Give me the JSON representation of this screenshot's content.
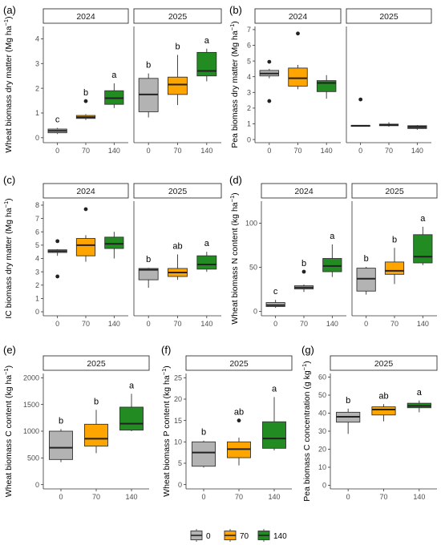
{
  "colors": {
    "0": "#b3b3b3",
    "70": "#ffa500",
    "140": "#228b22"
  },
  "legend": {
    "position": "bottom",
    "items": [
      "0",
      "70",
      "140"
    ]
  },
  "chart_data": [
    {
      "type": "boxplot",
      "tag": "(a)",
      "ylabel": "Wheat biomass dry matter (Mg ha",
      "ysup": "−1",
      "ylabel_end": ")",
      "ylim": [
        -0.2,
        4.5
      ],
      "yticks": [
        0,
        1,
        2,
        3,
        4
      ],
      "categories": [
        "0",
        "70",
        "140"
      ],
      "panels": [
        {
          "strip": "2024",
          "boxes": [
            {
              "group": "0",
              "min": 0.15,
              "q1": 0.2,
              "median": 0.28,
              "q3": 0.35,
              "max": 0.4,
              "outliers": [],
              "letter": "c"
            },
            {
              "group": "70",
              "min": 0.72,
              "q1": 0.78,
              "median": 0.83,
              "q3": 0.9,
              "max": 0.95,
              "outliers": [
                1.48
              ],
              "letter": "b"
            },
            {
              "group": "140",
              "min": 1.2,
              "q1": 1.35,
              "median": 1.6,
              "q3": 1.9,
              "max": 2.2,
              "outliers": [],
              "letter": "a"
            }
          ]
        },
        {
          "strip": "2025",
          "boxes": [
            {
              "group": "0",
              "min": 0.82,
              "q1": 1.05,
              "median": 1.75,
              "q3": 2.4,
              "max": 2.6,
              "outliers": [],
              "letter": "b"
            },
            {
              "group": "70",
              "min": 1.32,
              "q1": 1.75,
              "median": 2.15,
              "q3": 2.45,
              "max": 3.35,
              "outliers": [],
              "letter": "b"
            },
            {
              "group": "140",
              "min": 2.28,
              "q1": 2.5,
              "median": 2.7,
              "q3": 3.45,
              "max": 3.6,
              "outliers": [],
              "letter": "a"
            }
          ]
        }
      ]
    },
    {
      "type": "boxplot",
      "tag": "(b)",
      "ylabel": "Pea biomass dry matter (Mg ha",
      "ysup": "−1",
      "ylabel_end": ")",
      "ylim": [
        -0.2,
        7.2
      ],
      "yticks": [
        0,
        1,
        2,
        3,
        4,
        5,
        6,
        7
      ],
      "categories": [
        "0",
        "70",
        "140"
      ],
      "panels": [
        {
          "strip": "2024",
          "boxes": [
            {
              "group": "0",
              "min": 3.9,
              "q1": 4.05,
              "median": 4.2,
              "q3": 4.4,
              "max": 4.5,
              "outliers": [
                4.95,
                2.45
              ],
              "letter": ""
            },
            {
              "group": "70",
              "min": 3.2,
              "q1": 3.4,
              "median": 3.9,
              "q3": 4.55,
              "max": 4.75,
              "outliers": [
                6.75
              ],
              "letter": ""
            },
            {
              "group": "140",
              "min": 2.6,
              "q1": 3.05,
              "median": 3.6,
              "q3": 3.75,
              "max": 4.1,
              "outliers": [],
              "letter": ""
            }
          ]
        },
        {
          "strip": "2025",
          "boxes": [
            {
              "group": "0",
              "min": 0.85,
              "q1": 0.85,
              "median": 0.88,
              "q3": 0.9,
              "max": 0.92,
              "outliers": [
                2.55
              ],
              "letter": ""
            },
            {
              "group": "70",
              "min": 0.82,
              "q1": 0.88,
              "median": 0.92,
              "q3": 0.98,
              "max": 1.1,
              "outliers": [],
              "letter": ""
            },
            {
              "group": "140",
              "min": 0.62,
              "q1": 0.7,
              "median": 0.8,
              "q3": 0.88,
              "max": 0.92,
              "outliers": [],
              "letter": ""
            }
          ]
        }
      ]
    },
    {
      "type": "boxplot",
      "tag": "(c)",
      "ylabel": "IC biomass dry matter (Mg ha",
      "ysup": "−1",
      "ylabel_end": ")",
      "ylim": [
        -0.3,
        8.3
      ],
      "yticks": [
        0,
        1,
        2,
        3,
        4,
        5,
        6,
        7,
        8
      ],
      "categories": [
        "0",
        "70",
        "140"
      ],
      "panels": [
        {
          "strip": "2024",
          "boxes": [
            {
              "group": "0",
              "min": 4.2,
              "q1": 4.45,
              "median": 4.55,
              "q3": 4.65,
              "max": 4.7,
              "outliers": [
                5.3,
                2.65
              ],
              "letter": ""
            },
            {
              "group": "70",
              "min": 3.75,
              "q1": 4.2,
              "median": 5.0,
              "q3": 5.5,
              "max": 5.75,
              "outliers": [
                7.7
              ],
              "letter": ""
            },
            {
              "group": "140",
              "min": 4.0,
              "q1": 4.75,
              "median": 5.1,
              "q3": 5.6,
              "max": 6.0,
              "outliers": [],
              "letter": ""
            }
          ]
        },
        {
          "strip": "2025",
          "boxes": [
            {
              "group": "0",
              "min": 1.8,
              "q1": 2.4,
              "median": 3.15,
              "q3": 3.25,
              "max": 3.3,
              "outliers": [],
              "letter": "b"
            },
            {
              "group": "70",
              "min": 2.4,
              "q1": 2.65,
              "median": 2.95,
              "q3": 3.25,
              "max": 4.3,
              "outliers": [],
              "letter": "ab"
            },
            {
              "group": "140",
              "min": 3.0,
              "q1": 3.2,
              "median": 3.55,
              "q3": 4.2,
              "max": 4.5,
              "outliers": [],
              "letter": "a"
            }
          ]
        }
      ]
    },
    {
      "type": "boxplot",
      "tag": "(d)",
      "ylabel": "Wheat biomass N content (kg ha",
      "ysup": "−1",
      "ylabel_end": ")",
      "ylim": [
        -5,
        125
      ],
      "yticks": [
        0,
        50,
        100
      ],
      "categories": [
        "0",
        "70",
        "140"
      ],
      "panels": [
        {
          "strip": "2024",
          "boxes": [
            {
              "group": "0",
              "min": 4,
              "q1": 5.5,
              "median": 7,
              "q3": 10,
              "max": 13,
              "outliers": [],
              "letter": "c"
            },
            {
              "group": "70",
              "min": 22,
              "q1": 25.5,
              "median": 27,
              "q3": 29,
              "max": 30.5,
              "outliers": [
                45
              ],
              "letter": "b"
            },
            {
              "group": "140",
              "min": 39,
              "q1": 45,
              "median": 51.5,
              "q3": 60,
              "max": 76,
              "outliers": [],
              "letter": "a"
            }
          ]
        },
        {
          "strip": "2025",
          "boxes": [
            {
              "group": "0",
              "min": 19,
              "q1": 23,
              "median": 37,
              "q3": 49,
              "max": 50.5,
              "outliers": [],
              "letter": "b"
            },
            {
              "group": "70",
              "min": 31,
              "q1": 42,
              "median": 46,
              "q3": 56,
              "max": 72,
              "outliers": [],
              "letter": "b"
            },
            {
              "group": "140",
              "min": 52.5,
              "q1": 55,
              "median": 62,
              "q3": 87,
              "max": 96,
              "outliers": [],
              "letter": "a"
            }
          ]
        }
      ]
    },
    {
      "type": "boxplot",
      "tag": "(e)",
      "ylabel": "Wheat biomass C content (kg ha",
      "ysup": "−1",
      "ylabel_end": ")",
      "ylim": [
        -80,
        2080
      ],
      "yticks": [
        0,
        500,
        1000,
        1500,
        2000
      ],
      "categories": [
        "0",
        "70",
        "140"
      ],
      "panels": [
        {
          "strip": "2025",
          "boxes": [
            {
              "group": "0",
              "min": 420,
              "q1": 470,
              "median": 690,
              "q3": 1000,
              "max": 1040,
              "outliers": [],
              "letter": "b"
            },
            {
              "group": "70",
              "min": 590,
              "q1": 720,
              "median": 860,
              "q3": 1130,
              "max": 1400,
              "outliers": [],
              "letter": "b"
            },
            {
              "group": "140",
              "min": 1000,
              "q1": 1020,
              "median": 1140,
              "q3": 1450,
              "max": 1700,
              "outliers": [],
              "letter": "a"
            }
          ]
        }
      ]
    },
    {
      "type": "boxplot",
      "tag": "(f)",
      "ylabel": "Wheat biomass P content (kg ha",
      "ysup": "−1",
      "ylabel_end": ")",
      "ylim": [
        -1,
        26
      ],
      "yticks": [
        0,
        5,
        10,
        15,
        20,
        25
      ],
      "categories": [
        "0",
        "70",
        "140"
      ],
      "panels": [
        {
          "strip": "2025",
          "boxes": [
            {
              "group": "0",
              "min": 4,
              "q1": 4.3,
              "median": 7.5,
              "q3": 10,
              "max": 10.3,
              "outliers": [],
              "letter": "b"
            },
            {
              "group": "70",
              "min": 4.5,
              "q1": 6.3,
              "median": 8.3,
              "q3": 10,
              "max": 11,
              "outliers": [
                15
              ],
              "letter": "ab"
            },
            {
              "group": "140",
              "min": 8,
              "q1": 8.5,
              "median": 10.8,
              "q3": 14.7,
              "max": 20.5,
              "outliers": [],
              "letter": "a"
            }
          ]
        }
      ]
    },
    {
      "type": "boxplot",
      "tag": "(g)",
      "ylabel": "Pea biomass C concentration (g kg",
      "ysup": "−1",
      "ylabel_end": ")",
      "ylim": [
        -2,
        62
      ],
      "yticks": [
        0,
        10,
        20,
        30,
        40,
        50,
        60
      ],
      "categories": [
        "0",
        "70",
        "140"
      ],
      "panels": [
        {
          "strip": "2025",
          "boxes": [
            {
              "group": "0",
              "min": 28.5,
              "q1": 35,
              "median": 38,
              "q3": 40.5,
              "max": 42.5,
              "outliers": [],
              "letter": "b"
            },
            {
              "group": "70",
              "min": 35.5,
              "q1": 39,
              "median": 42,
              "q3": 43.5,
              "max": 45,
              "outliers": [],
              "letter": "ab"
            },
            {
              "group": "140",
              "min": 40.5,
              "q1": 43,
              "median": 44,
              "q3": 45.5,
              "max": 47,
              "outliers": [],
              "letter": "a"
            }
          ]
        }
      ]
    }
  ]
}
